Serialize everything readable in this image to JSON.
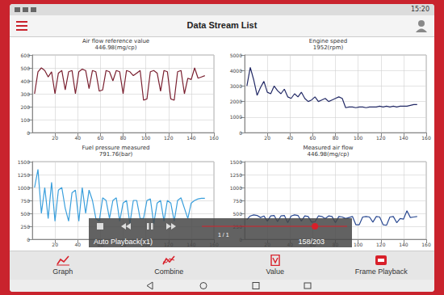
{
  "status_bar": {
    "time": "15:20"
  },
  "header": {
    "title": "Data Stream List"
  },
  "chart_data": [
    {
      "type": "line",
      "title": "Air flow reference value",
      "subtitle": "446.98(mg/cp)",
      "x": [
        2,
        5,
        8,
        11,
        14,
        17,
        20,
        23,
        26,
        29,
        32,
        35,
        38,
        41,
        44,
        47,
        50,
        53,
        56,
        59,
        62,
        65,
        68,
        71,
        74,
        77,
        80,
        83,
        86,
        89,
        92,
        95,
        98,
        101,
        104,
        107,
        110,
        113,
        116,
        119,
        122,
        125,
        128,
        131,
        134,
        137,
        140,
        143,
        146,
        149,
        152
      ],
      "series": [
        {
          "color": "#7a2030",
          "values": [
            300,
            470,
            500,
            480,
            430,
            470,
            300,
            460,
            480,
            330,
            470,
            480,
            300,
            470,
            490,
            480,
            340,
            480,
            470,
            320,
            330,
            480,
            470,
            400,
            480,
            470,
            300,
            480,
            470,
            440,
            460,
            480,
            250,
            260,
            470,
            480,
            460,
            320,
            480,
            470,
            260,
            250,
            470,
            480,
            300,
            420,
            410,
            500,
            420,
            430,
            440
          ]
        }
      ],
      "xlim": [
        0,
        160
      ],
      "xticks": [
        20,
        40,
        60,
        80,
        100,
        120,
        140,
        160
      ],
      "ylim": [
        0,
        600
      ],
      "yticks": [
        0,
        100,
        200,
        300,
        400,
        500,
        600
      ],
      "grid": true
    },
    {
      "type": "line",
      "title": "Engine speed",
      "subtitle": "1952(rpm)",
      "x": [
        2,
        5,
        8,
        11,
        14,
        17,
        20,
        23,
        26,
        29,
        32,
        35,
        38,
        41,
        44,
        47,
        50,
        53,
        56,
        59,
        62,
        65,
        68,
        71,
        74,
        77,
        80,
        83,
        86,
        89,
        92,
        95,
        98,
        101,
        104,
        107,
        110,
        113,
        116,
        119,
        122,
        125,
        128,
        131,
        134,
        137,
        140,
        143,
        146,
        149,
        152
      ],
      "series": [
        {
          "color": "#232a66",
          "values": [
            3000,
            4200,
            3400,
            2400,
            2900,
            3300,
            2600,
            2500,
            3000,
            2700,
            2500,
            2800,
            2300,
            2200,
            2500,
            2300,
            2600,
            2200,
            2000,
            2100,
            2300,
            2000,
            2100,
            2200,
            2000,
            2100,
            2200,
            2300,
            2200,
            1600,
            1650,
            1650,
            1600,
            1650,
            1650,
            1600,
            1650,
            1650,
            1650,
            1700,
            1650,
            1700,
            1650,
            1700,
            1650,
            1700,
            1700,
            1700,
            1750,
            1800,
            1800
          ]
        }
      ],
      "xlim": [
        0,
        160
      ],
      "xticks": [
        20,
        40,
        60,
        80,
        100,
        120,
        140,
        160
      ],
      "ylim": [
        0,
        5000
      ],
      "yticks": [
        0,
        1000,
        2000,
        3000,
        4000,
        5000
      ],
      "grid": true
    },
    {
      "type": "line",
      "title": "Fuel pressure measured",
      "subtitle": "791.76(bar)",
      "x": [
        2,
        5,
        8,
        11,
        14,
        17,
        20,
        23,
        26,
        29,
        32,
        35,
        38,
        41,
        44,
        47,
        50,
        53,
        56,
        59,
        62,
        65,
        68,
        71,
        74,
        77,
        80,
        83,
        86,
        89,
        92,
        95,
        98,
        101,
        104,
        107,
        110,
        113,
        116,
        119,
        122,
        125,
        128,
        131,
        134,
        137,
        140,
        143,
        146,
        149,
        152
      ],
      "series": [
        {
          "color": "#3a9fdc",
          "values": [
            1000,
            1350,
            500,
            1000,
            400,
            1100,
            350,
            950,
            1000,
            600,
            350,
            900,
            950,
            350,
            1000,
            500,
            950,
            750,
            400,
            350,
            800,
            750,
            400,
            750,
            800,
            350,
            700,
            750,
            300,
            750,
            750,
            400,
            400,
            750,
            780,
            300,
            700,
            750,
            350,
            750,
            700,
            350,
            750,
            800,
            600,
            400,
            700,
            750,
            780,
            790,
            790
          ]
        }
      ],
      "xlim": [
        0,
        160
      ],
      "xticks": [
        20,
        40,
        60,
        80,
        100,
        120,
        140,
        160
      ],
      "ylim": [
        0,
        1500
      ],
      "yticks": [
        0,
        250,
        500,
        750,
        1000,
        1250,
        1500
      ],
      "grid": true
    },
    {
      "type": "line",
      "title": "Measured air flow",
      "subtitle": "446.98(mg/cp)",
      "x": [
        2,
        5,
        8,
        11,
        14,
        17,
        20,
        23,
        26,
        29,
        32,
        35,
        38,
        41,
        44,
        47,
        50,
        53,
        56,
        59,
        62,
        65,
        68,
        71,
        74,
        77,
        80,
        83,
        86,
        89,
        92,
        95,
        98,
        101,
        104,
        107,
        110,
        113,
        116,
        119,
        122,
        125,
        128,
        131,
        134,
        137,
        140,
        143,
        146,
        149,
        152
      ],
      "series": [
        {
          "color": "#2b4a92",
          "values": [
            380,
            450,
            470,
            460,
            420,
            450,
            350,
            450,
            460,
            340,
            450,
            460,
            320,
            450,
            470,
            460,
            350,
            450,
            440,
            330,
            340,
            450,
            440,
            400,
            450,
            440,
            320,
            440,
            430,
            400,
            420,
            440,
            280,
            280,
            430,
            440,
            430,
            330,
            440,
            430,
            280,
            270,
            430,
            440,
            320,
            400,
            390,
            550,
            420,
            430,
            440
          ]
        }
      ],
      "xlim": [
        0,
        160
      ],
      "xticks": [
        20,
        40,
        60,
        80,
        100,
        120,
        140,
        160
      ],
      "ylim": [
        0,
        1500
      ],
      "yticks": [
        0,
        250,
        500,
        750,
        1000,
        1250,
        1500
      ],
      "grid": true
    }
  ],
  "playback": {
    "label": "Auto Playback(x1)",
    "position": 158,
    "total": 203,
    "counter": "158/203"
  },
  "page": "1 / 1",
  "toolbar": [
    "Graph",
    "Combine",
    "Value",
    "Frame Playback"
  ]
}
